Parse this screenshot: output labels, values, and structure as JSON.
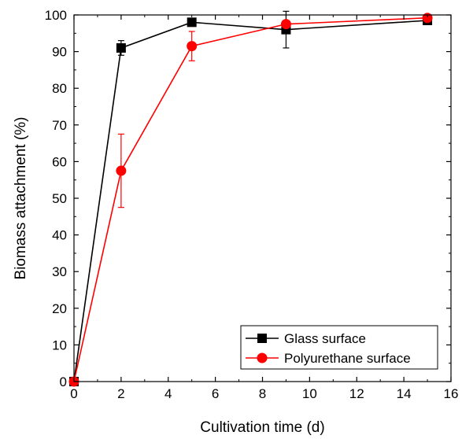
{
  "chart_data": {
    "type": "line",
    "title": "",
    "xlabel": "Cultivation time (d)",
    "ylabel": "Biomass attachment (%)",
    "xlim": [
      0,
      16
    ],
    "ylim": [
      0,
      100
    ],
    "xticks": [
      "0",
      "2",
      "4",
      "6",
      "8",
      "10",
      "12",
      "14",
      "16"
    ],
    "yticks": [
      "0",
      "10",
      "20",
      "30",
      "40",
      "50",
      "60",
      "70",
      "80",
      "90",
      "100"
    ],
    "grid": false,
    "legend_position": "bottom-right",
    "series": [
      {
        "name": "Glass surface",
        "color": "#000000",
        "marker": "square",
        "x": [
          0,
          2,
          5,
          9,
          15
        ],
        "y": [
          0,
          91,
          98,
          96,
          98.5
        ],
        "error": [
          0,
          2,
          0.8,
          5,
          0.8
        ]
      },
      {
        "name": "Polyurethane surface",
        "color": "#ff0000",
        "marker": "circle",
        "x": [
          0,
          2,
          5,
          9,
          15
        ],
        "y": [
          0,
          57.5,
          91.5,
          97.5,
          99.2
        ],
        "error": [
          0,
          10,
          4,
          1,
          0.5
        ]
      }
    ]
  }
}
